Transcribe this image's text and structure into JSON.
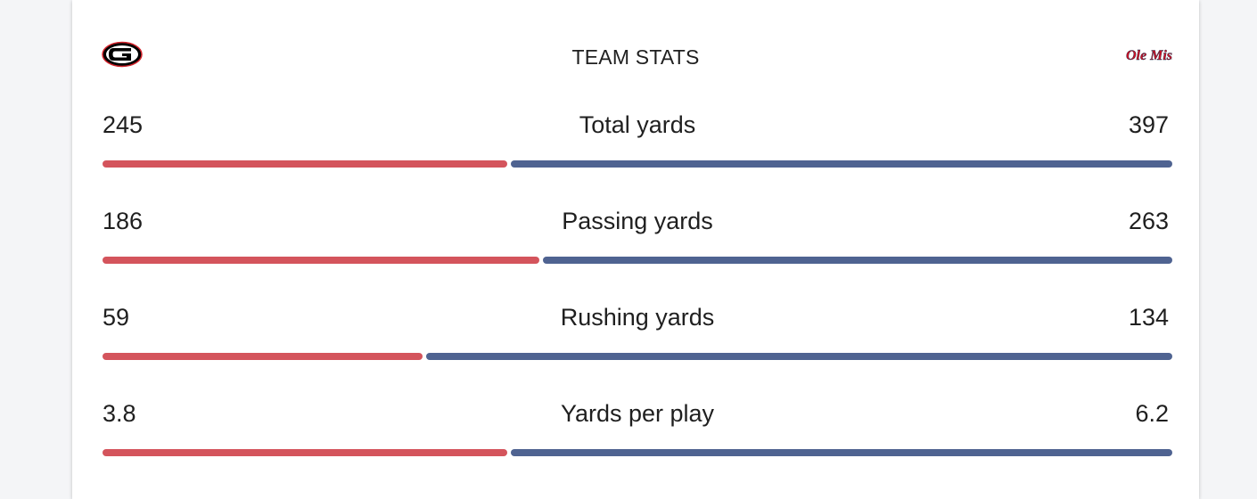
{
  "header": {
    "title": "TEAM STATS",
    "home_logo_icon": "georgia-g-logo-icon",
    "away_logo_icon": "ole-miss-script-logo-icon",
    "away_logo_text": "Ole Miss"
  },
  "colors": {
    "home_bar": "#d4545c",
    "away_bar": "#4f6391"
  },
  "stats": [
    {
      "label": "Total yards",
      "home": "245",
      "away": "397",
      "home_share": 0.38
    },
    {
      "label": "Passing yards",
      "home": "186",
      "away": "263",
      "home_share": 0.41
    },
    {
      "label": "Rushing yards",
      "home": "59",
      "away": "134",
      "home_share": 0.3
    },
    {
      "label": "Yards per play",
      "home": "3.8",
      "away": "6.2",
      "home_share": 0.38
    }
  ]
}
